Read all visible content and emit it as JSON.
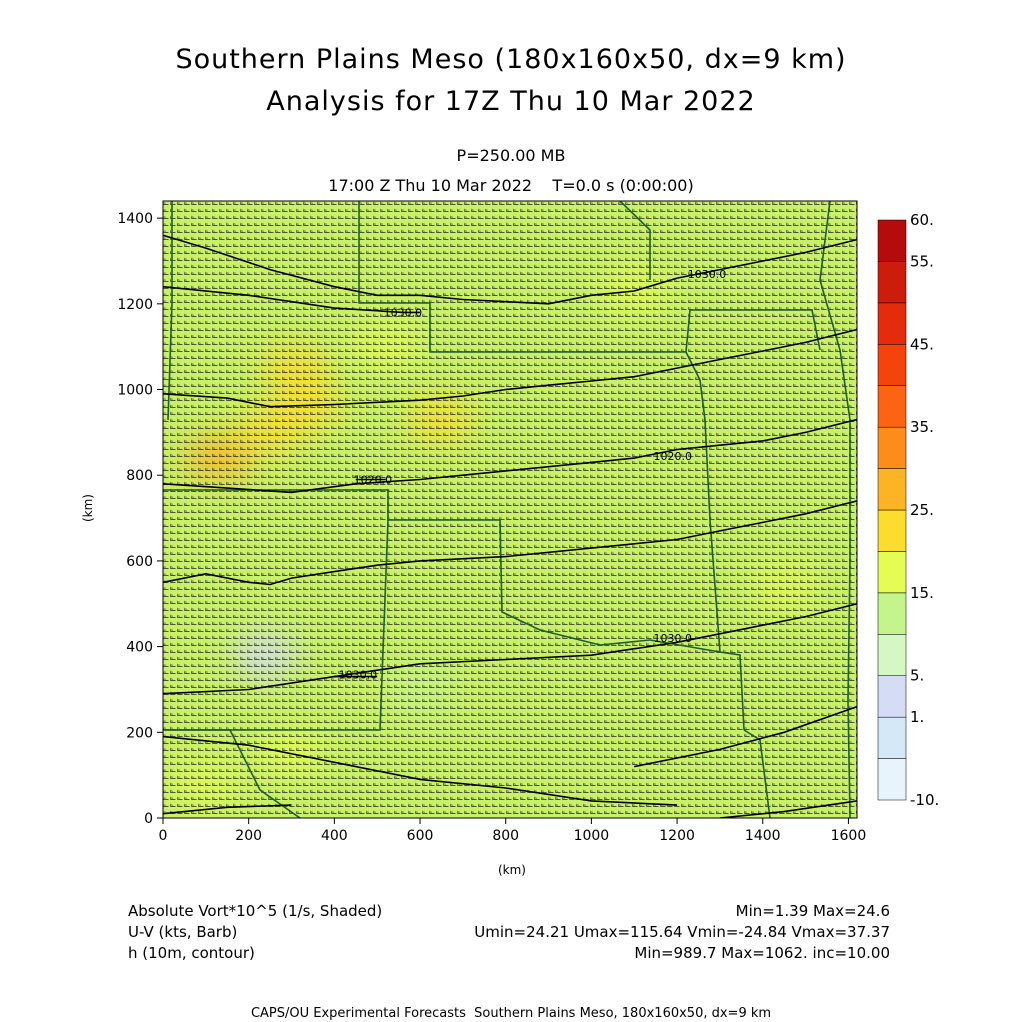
{
  "header": {
    "title_line1": "Southern Plains Meso (180x160x50, dx=9 km)",
    "title_line2": "Analysis for 17Z Thu 10 Mar 2022",
    "level": "P=250.00 MB",
    "time": "17:00 Z Thu 10 Mar 2022    T=0.0 s (0:00:00)"
  },
  "chart_data": {
    "type": "heatmap",
    "xlabel": "(km)",
    "ylabel": "(km)",
    "xlim": [
      0,
      1620
    ],
    "ylim": [
      0,
      1440
    ],
    "x_ticks": [
      0,
      200,
      400,
      600,
      800,
      1000,
      1200,
      1400,
      1600
    ],
    "y_ticks": [
      0,
      200,
      400,
      600,
      800,
      1000,
      1200,
      1400
    ],
    "colorbar": {
      "levels": [
        -10,
        -5,
        1,
        5,
        10,
        15,
        20,
        25,
        30,
        35,
        40,
        45,
        50,
        55,
        60
      ],
      "labels": [
        "60.",
        "55.",
        "45.",
        "35.",
        "25.",
        "15.",
        "5.",
        "1.",
        "-10."
      ],
      "label_values": [
        60,
        55,
        45,
        35,
        25,
        15,
        5,
        1,
        -10
      ],
      "colors": [
        "#e8f4fc",
        "#d4e8f8",
        "#d4dcf6",
        "#d4f8c4",
        "#c4f48c",
        "#e4fc54",
        "#fcdc2c",
        "#fcb424",
        "#fc8c1c",
        "#fc6414",
        "#f4440c",
        "#e42c0c",
        "#cc1c0c",
        "#b40c0c"
      ]
    },
    "shading_features": [
      {
        "x": 130,
        "y": 840,
        "value": 25
      },
      {
        "x": 310,
        "y": 1050,
        "value": 22
      },
      {
        "x": 340,
        "y": 960,
        "value": 21
      },
      {
        "x": 250,
        "y": 900,
        "value": 20
      },
      {
        "x": 650,
        "y": 930,
        "value": 24
      },
      {
        "x": 520,
        "y": 1100,
        "value": 18
      },
      {
        "x": 1100,
        "y": 1230,
        "value": 18
      },
      {
        "x": 1450,
        "y": 540,
        "value": 18
      },
      {
        "x": 100,
        "y": 80,
        "value": 17
      },
      {
        "x": 300,
        "y": 150,
        "value": 17
      },
      {
        "x": 600,
        "y": 300,
        "value": 13
      },
      {
        "x": 240,
        "y": 380,
        "value": 2
      }
    ],
    "height_contours": [
      {
        "label": "1030.0",
        "label_x": 1010,
        "label_y": 370,
        "points": [
          [
            0,
            290
          ],
          [
            200,
            300
          ],
          [
            400,
            330
          ],
          [
            600,
            360
          ],
          [
            800,
            370
          ],
          [
            1000,
            380
          ],
          [
            1200,
            420
          ],
          [
            1400,
            460
          ],
          [
            1620,
            500
          ]
        ]
      },
      {
        "label": "1020.0",
        "label_x": 1180,
        "label_y": 420,
        "points": [
          [
            0,
            190
          ],
          [
            200,
            170
          ],
          [
            400,
            130
          ],
          [
            600,
            90
          ],
          [
            800,
            70
          ],
          [
            1000,
            70
          ],
          [
            1200,
            110
          ],
          [
            1400,
            160
          ],
          [
            1620,
            240
          ]
        ]
      },
      {
        "label": "",
        "label_x": 0,
        "label_y": 0,
        "points": [
          [
            0,
            10
          ],
          [
            300,
            40
          ],
          [
            600,
            70
          ],
          [
            800,
            70
          ],
          [
            1000,
            30
          ],
          [
            1200,
            10
          ]
        ]
      },
      {
        "label": "",
        "label_x": 0,
        "label_y": 0,
        "points": [
          [
            1300,
            0
          ],
          [
            1450,
            20
          ],
          [
            1620,
            40
          ]
        ]
      }
    ],
    "contours": [
      {
        "label": "1030.0",
        "points": [
          [
            0,
            1360
          ],
          [
            100,
            1330
          ],
          [
            250,
            1280
          ],
          [
            400,
            1240
          ],
          [
            500,
            1220
          ],
          [
            600,
            1220
          ],
          [
            700,
            1210
          ],
          [
            900,
            1200
          ],
          [
            1000,
            1220
          ],
          [
            1100,
            1230
          ],
          [
            1200,
            1260
          ],
          [
            1300,
            1280
          ],
          [
            1400,
            1300
          ],
          [
            1500,
            1320
          ],
          [
            1620,
            1350
          ]
        ],
        "label_at": [
          1270,
          1270
        ]
      },
      {
        "label": "1030.0",
        "points": [
          [
            0,
            1240
          ],
          [
            200,
            1220
          ],
          [
            400,
            1190
          ],
          [
            560,
            1180
          ],
          [
            600,
            1180
          ]
        ],
        "label_at": [
          560,
          1180
        ]
      },
      {
        "label": "",
        "points": [
          [
            0,
            990
          ],
          [
            150,
            980
          ],
          [
            250,
            960
          ],
          [
            400,
            965
          ],
          [
            600,
            975
          ],
          [
            700,
            985
          ],
          [
            800,
            1000
          ],
          [
            900,
            1010
          ],
          [
            1000,
            1020
          ],
          [
            1100,
            1030
          ],
          [
            1200,
            1050
          ],
          [
            1300,
            1070
          ],
          [
            1400,
            1090
          ],
          [
            1500,
            1110
          ],
          [
            1620,
            1140
          ]
        ],
        "label_at": null
      },
      {
        "label": "1020.0",
        "points": [
          [
            0,
            780
          ],
          [
            150,
            770
          ],
          [
            300,
            760
          ],
          [
            450,
            780
          ],
          [
            600,
            790
          ],
          [
            700,
            800
          ],
          [
            800,
            810
          ],
          [
            900,
            820
          ],
          [
            1000,
            830
          ],
          [
            1100,
            840
          ],
          [
            1200,
            860
          ],
          [
            1300,
            870
          ],
          [
            1400,
            880
          ],
          [
            1500,
            900
          ],
          [
            1620,
            930
          ]
        ],
        "label_at": [
          1190,
          845
        ]
      },
      {
        "label": "1020.0",
        "points": [
          [
            450,
            790
          ],
          [
            520,
            790
          ]
        ],
        "label_at": [
          490,
          790
        ]
      },
      {
        "label": "",
        "points": [
          [
            0,
            550
          ],
          [
            100,
            570
          ],
          [
            200,
            550
          ],
          [
            250,
            545
          ],
          [
            300,
            560
          ],
          [
            400,
            575
          ],
          [
            500,
            590
          ],
          [
            600,
            600
          ],
          [
            800,
            610
          ],
          [
            1000,
            630
          ],
          [
            1100,
            640
          ],
          [
            1200,
            650
          ],
          [
            1300,
            670
          ],
          [
            1400,
            690
          ],
          [
            1500,
            710
          ],
          [
            1620,
            740
          ]
        ],
        "label_at": null
      },
      {
        "label": "1030.0",
        "points": [
          [
            0,
            290
          ],
          [
            200,
            300
          ],
          [
            400,
            330
          ],
          [
            600,
            360
          ],
          [
            800,
            370
          ],
          [
            1000,
            380
          ],
          [
            1200,
            410
          ],
          [
            1300,
            430
          ],
          [
            1400,
            450
          ],
          [
            1500,
            470
          ],
          [
            1620,
            500
          ]
        ],
        "label_at": [
          1190,
          420
        ]
      },
      {
        "label": "1030.0",
        "points": [
          [
            400,
            330
          ],
          [
            500,
            330
          ]
        ],
        "label_at": [
          455,
          335
        ]
      },
      {
        "label": "",
        "points": [
          [
            0,
            190
          ],
          [
            200,
            170
          ],
          [
            400,
            130
          ],
          [
            600,
            90
          ],
          [
            800,
            70
          ],
          [
            1000,
            40
          ],
          [
            1200,
            30
          ]
        ],
        "label_at": null
      },
      {
        "label": "",
        "points": [
          [
            1100,
            120
          ],
          [
            1300,
            160
          ],
          [
            1450,
            200
          ],
          [
            1620,
            260
          ]
        ],
        "label_at": null
      },
      {
        "label": "",
        "points": [
          [
            0,
            10
          ],
          [
            150,
            25
          ],
          [
            300,
            30
          ]
        ],
        "label_at": null
      },
      {
        "label": "",
        "points": [
          [
            1300,
            0
          ],
          [
            1450,
            15
          ],
          [
            1620,
            40
          ]
        ],
        "label_at": null
      }
    ],
    "wind_barb_speed_range_kts": [
      24.21,
      115.64
    ],
    "wind_direction_dominant": "westerly"
  },
  "footer": {
    "line1_left": "Absolute Vort*10^5 (1/s, Shaded)",
    "line1_right": "Min=1.39 Max=24.6",
    "line2_left": "U-V (kts, Barb)",
    "line2_right": "Umin=24.21 Umax=115.64 Vmin=-24.84 Vmax=37.37",
    "line3_left": "h (10m, contour)",
    "line3_right": "Min=989.7 Max=1062. inc=10.00",
    "credit": "CAPS/OU Experimental Forecasts  Southern Plains Meso, 180x160x50, dx=9 km"
  }
}
